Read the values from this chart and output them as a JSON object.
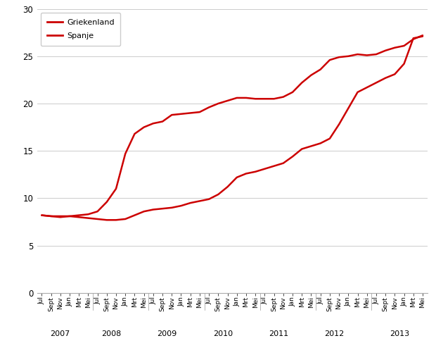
{
  "legend_griekenland": "Griekenland",
  "legend_spanje": "Spanje",
  "line_color": "#cc0000",
  "background_color": "#ffffff",
  "grid_color": "#cccccc",
  "ylim": [
    0,
    30
  ],
  "yticks": [
    0,
    5,
    10,
    15,
    20,
    25,
    30
  ],
  "month_labels": [
    "Jul",
    "Sept",
    "Nov",
    "Jan",
    "Mrt",
    "Mei",
    "Jul",
    "Sept",
    "Nov",
    "Jan",
    "Mrt",
    "Mei",
    "Jul",
    "Sept",
    "Nov",
    "Jan",
    "Mrt",
    "Mei",
    "Jul",
    "Sept",
    "Nov",
    "Jan",
    "Mrt",
    "Mei",
    "Jul",
    "Sept",
    "Nov",
    "Jan",
    "Mrt",
    "Mei",
    "Jul",
    "Sept",
    "Nov",
    "Jan",
    "Mrt",
    "Mei",
    "Jul",
    "Sept",
    "Nov",
    "Jan",
    "Mrt",
    "Mei"
  ],
  "year_labels": [
    "2007",
    "2008",
    "2009",
    "2010",
    "2011",
    "2012",
    "2013"
  ],
  "year_mid_x": [
    2.0,
    7.5,
    13.5,
    19.5,
    25.5,
    31.5,
    38.5
  ],
  "year_sep_x": [
    5.5,
    11.5,
    17.5,
    23.5,
    29.5,
    35.5
  ],
  "griekenland": [
    8.2,
    8.1,
    8.1,
    8.1,
    8.0,
    7.9,
    7.8,
    7.7,
    7.7,
    7.8,
    8.2,
    8.6,
    8.8,
    8.9,
    9.0,
    9.2,
    9.5,
    9.7,
    9.9,
    10.4,
    11.2,
    12.2,
    12.6,
    12.8,
    13.1,
    13.4,
    13.7,
    14.4,
    15.2,
    15.5,
    15.8,
    16.3,
    17.8,
    19.5,
    21.2,
    21.7,
    22.2,
    22.7,
    23.1,
    24.2,
    26.9,
    27.1
  ],
  "spanje": [
    8.2,
    8.1,
    8.0,
    8.1,
    8.2,
    8.3,
    8.6,
    9.6,
    11.0,
    14.7,
    16.8,
    17.5,
    17.9,
    18.1,
    18.8,
    18.9,
    19.0,
    19.1,
    19.6,
    20.0,
    20.3,
    20.6,
    20.6,
    20.5,
    20.5,
    20.5,
    20.7,
    21.2,
    22.2,
    23.0,
    23.6,
    24.6,
    24.9,
    25.0,
    25.2,
    25.1,
    25.2,
    25.6,
    25.9,
    26.1,
    26.8,
    27.2
  ]
}
